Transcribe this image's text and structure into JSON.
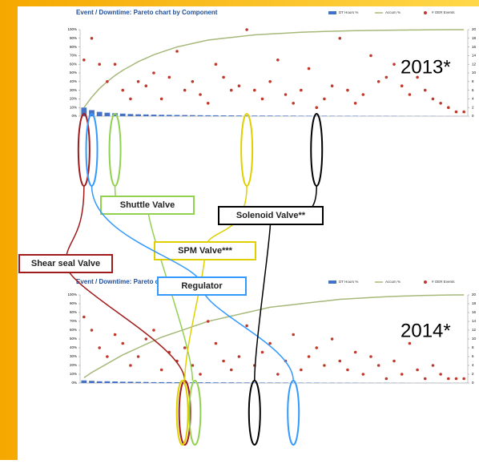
{
  "chart_data": [
    {
      "type": "pareto",
      "title": "Event / Downtime: Pareto chart by Component",
      "annotation": "2013*",
      "categories": [
        null,
        null,
        null,
        null,
        null,
        null,
        null,
        null,
        null,
        null,
        null,
        null,
        null,
        null,
        null,
        null,
        null,
        null,
        null,
        null,
        null,
        null,
        null,
        null,
        null,
        null,
        null,
        null,
        null,
        null,
        null,
        null,
        null,
        null,
        null,
        null,
        null,
        null,
        null,
        null,
        null,
        null,
        null,
        null,
        null,
        null,
        null,
        null,
        null,
        null
      ],
      "series": [
        {
          "name": "DT Hours %",
          "type": "bar",
          "color": "#4472c4",
          "values": [
            10,
            7,
            5,
            4,
            3.5,
            3,
            2.5,
            2.2,
            2,
            1.8,
            1.6,
            1.5,
            1.4,
            1.3,
            1.2,
            1.1,
            1,
            1,
            0.9,
            0.9,
            0.8,
            0.8,
            0.7,
            0.7,
            0.7,
            0.6,
            0.6,
            0.6,
            0.5,
            0.5,
            0.5,
            0.5,
            0.4,
            0.4,
            0.4,
            0.4,
            0.3,
            0.3,
            0.3,
            0.3,
            0.3,
            0.2,
            0.2,
            0.2,
            0.2,
            0.2,
            0.1,
            0.1,
            0.1,
            0.1
          ]
        },
        {
          "name": "Accum %",
          "type": "line",
          "color": "#a6b97a",
          "values": [
            10,
            22,
            32,
            40,
            47,
            53,
            58,
            63,
            67,
            71,
            74,
            77,
            80,
            82,
            84,
            86,
            88,
            89,
            90,
            91,
            92,
            93,
            94,
            94.5,
            95,
            95.5,
            96,
            96.5,
            97,
            97.3,
            97.6,
            97.9,
            98.2,
            98.4,
            98.6,
            98.8,
            99,
            99.1,
            99.2,
            99.3,
            99.4,
            99.5,
            99.6,
            99.7,
            99.8,
            99.85,
            99.9,
            99.95,
            100,
            100
          ]
        },
        {
          "name": "# OER Events",
          "type": "scatter",
          "axis": "y2",
          "color": "#c0392b",
          "values": [
            13,
            18,
            12,
            8,
            12,
            6,
            4,
            8,
            7,
            10,
            4,
            9,
            15,
            6,
            8,
            5,
            3,
            12,
            9,
            6,
            7,
            20,
            6,
            4,
            8,
            13,
            5,
            3,
            6,
            11,
            2,
            4,
            7,
            18,
            6,
            3,
            5,
            14,
            8,
            9,
            12,
            7,
            5,
            9,
            6,
            4,
            3,
            2,
            1,
            1
          ]
        }
      ],
      "ylim": [
        0,
        100
      ],
      "yticks": [
        {
          "value": 0,
          "label": "0%"
        },
        {
          "value": 10,
          "label": "10%"
        },
        {
          "value": 20,
          "label": "20%"
        },
        {
          "value": 30,
          "label": "30%"
        },
        {
          "value": 40,
          "label": "40%"
        },
        {
          "value": 50,
          "label": "50%"
        },
        {
          "value": 60,
          "label": "60%"
        },
        {
          "value": 70,
          "label": "70%"
        },
        {
          "value": 80,
          "label": "80%"
        },
        {
          "value": 90,
          "label": "90%"
        },
        {
          "value": 100,
          "label": "100%"
        }
      ],
      "y2lim": [
        0,
        20
      ],
      "y2ticks": [
        0,
        2,
        4,
        6,
        8,
        10,
        12,
        14,
        16,
        18,
        20
      ],
      "legend": "top-right"
    },
    {
      "type": "pareto",
      "title": "Event / Downtime: Pareto chart by Component",
      "annotation": "2014*",
      "categories": [
        null,
        null,
        null,
        null,
        null,
        null,
        null,
        null,
        null,
        null,
        null,
        null,
        null,
        null,
        null,
        null,
        null,
        null,
        null,
        null,
        null,
        null,
        null,
        null,
        null,
        null,
        null,
        null,
        null,
        null,
        null,
        null,
        null,
        null,
        null,
        null,
        null,
        null,
        null,
        null,
        null,
        null,
        null,
        null,
        null,
        null,
        null,
        null,
        null,
        null
      ],
      "series": [
        {
          "name": "DT Hours %",
          "type": "bar",
          "color": "#4472c4",
          "values": [
            3,
            2.5,
            2,
            2,
            1.8,
            1.5,
            1.5,
            1.3,
            1.2,
            1,
            1,
            1,
            0.9,
            0.9,
            0.8,
            0.8,
            0.8,
            0.7,
            0.7,
            0.7,
            0.6,
            0.6,
            0.6,
            0.5,
            0.5,
            0.5,
            0.5,
            0.4,
            0.4,
            0.4,
            0.4,
            0.3,
            0.3,
            0.3,
            0.3,
            0.3,
            0.2,
            0.2,
            0.2,
            0.2,
            0.2,
            0.2,
            0.1,
            0.1,
            0.1,
            0.1,
            0.1,
            0.1,
            0.1,
            0.1
          ]
        },
        {
          "name": "Accum %",
          "type": "line",
          "color": "#a6b97a",
          "values": [
            6,
            12,
            17,
            22,
            27,
            32,
            36,
            40,
            44,
            48,
            52,
            55,
            58,
            61,
            64,
            67,
            70,
            72,
            74,
            76,
            78,
            80,
            82,
            84,
            86,
            87,
            88,
            89,
            90,
            91,
            92,
            93,
            94,
            95,
            95.5,
            96,
            96.5,
            97,
            97.5,
            98,
            98.3,
            98.6,
            98.9,
            99.2,
            99.4,
            99.6,
            99.8,
            99.9,
            100,
            100
          ]
        },
        {
          "name": "# OER Events",
          "type": "scatter",
          "axis": "y2",
          "color": "#c0392b",
          "values": [
            15,
            12,
            8,
            6,
            11,
            9,
            4,
            6,
            10,
            12,
            3,
            7,
            5,
            8,
            4,
            2,
            14,
            9,
            5,
            3,
            6,
            13,
            4,
            7,
            9,
            2,
            5,
            11,
            3,
            6,
            8,
            4,
            10,
            5,
            3,
            7,
            2,
            6,
            4,
            1,
            5,
            2,
            9,
            3,
            1,
            4,
            2,
            1,
            1,
            1
          ]
        }
      ],
      "ylim": [
        0,
        100
      ],
      "yticks": [
        {
          "value": 0,
          "label": "0%"
        },
        {
          "value": 10,
          "label": "10%"
        },
        {
          "value": 20,
          "label": "20%"
        },
        {
          "value": 30,
          "label": "30%"
        },
        {
          "value": 40,
          "label": "40%"
        },
        {
          "value": 50,
          "label": "50%"
        },
        {
          "value": 60,
          "label": "60%"
        },
        {
          "value": 70,
          "label": "70%"
        },
        {
          "value": 80,
          "label": "80%"
        },
        {
          "value": 90,
          "label": "90%"
        },
        {
          "value": 100,
          "label": "100%"
        }
      ],
      "y2lim": [
        0,
        20
      ],
      "y2ticks": [
        0,
        2,
        4,
        6,
        8,
        10,
        12,
        14,
        16,
        18,
        20
      ],
      "legend": "top-right"
    }
  ],
  "callouts": [
    {
      "label": "Shear seal Valve",
      "color": "#a01c1c"
    },
    {
      "label": "Shuttle Valve",
      "color": "#92d050"
    },
    {
      "label": "SPM Valve***",
      "color": "#ffff00"
    },
    {
      "label": "Regulator",
      "color": "#3399ff"
    },
    {
      "label": "Solenoid Valve**",
      "color": "#000000"
    }
  ]
}
